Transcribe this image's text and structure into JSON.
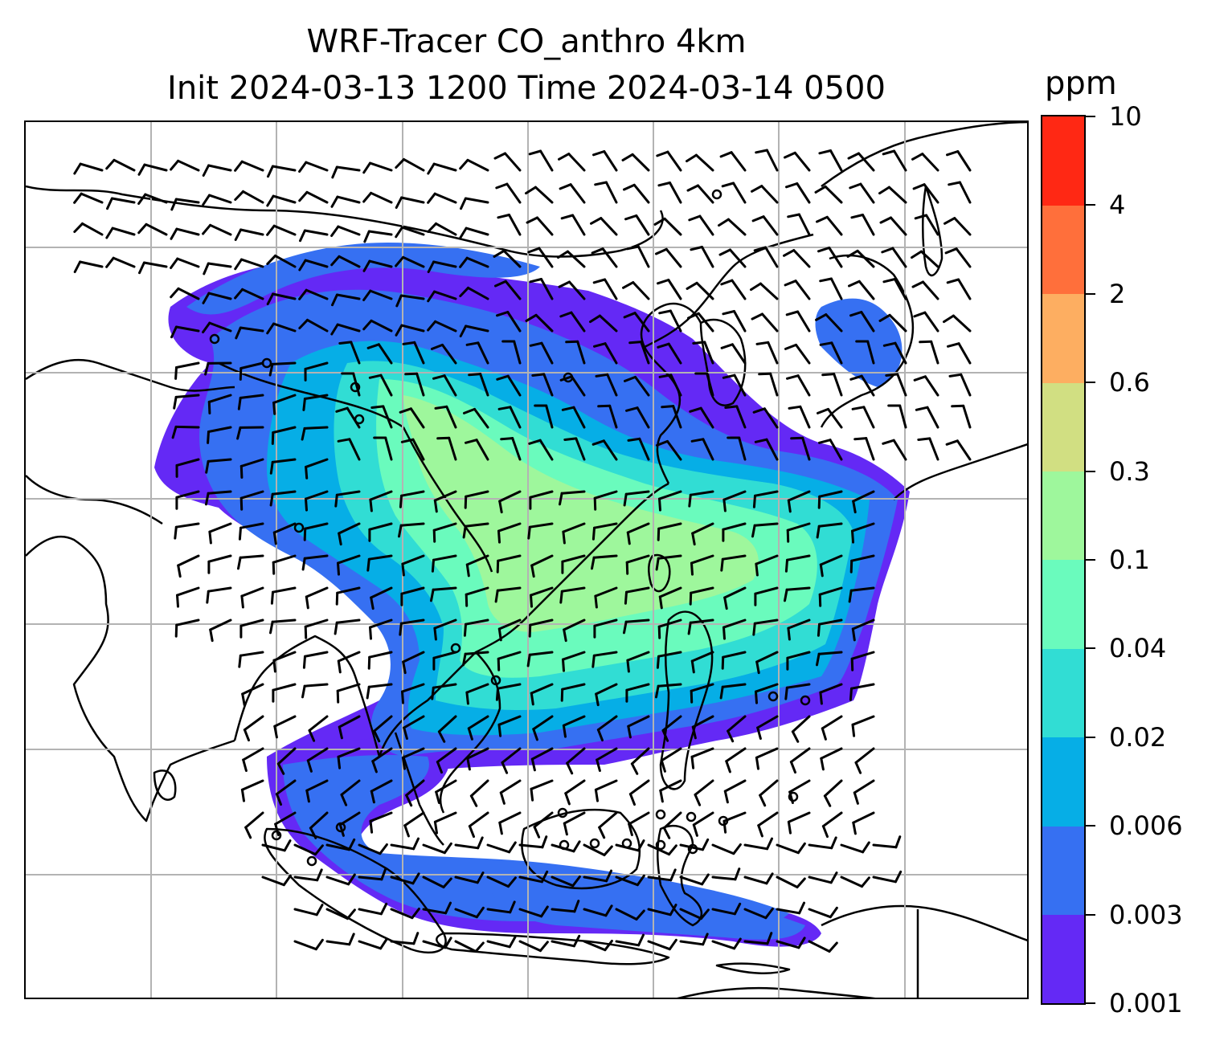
{
  "title": {
    "line1": "WRF-Tracer CO_anthro 4km",
    "line2": "Init 2024-03-13 1200 Time 2024-03-14 0500"
  },
  "colorbar": {
    "units": "ppm",
    "levels": [
      "0.001",
      "0.003",
      "0.006",
      "0.02",
      "0.04",
      "0.1",
      "0.3",
      "0.6",
      "2",
      "4",
      "10"
    ],
    "colors": [
      "#6429f5",
      "#3670f2",
      "#06aee6",
      "#31ddd4",
      "#6afbbd",
      "#9ef79c",
      "#d1df82",
      "#fdae61",
      "#ff6f3b",
      "#ff2814"
    ]
  },
  "map": {
    "coastline_color": "#000000",
    "gridline_color": "#b3b3b3",
    "plume_colors": {
      "faint": "#6429f5",
      "low": "#3670f2",
      "mid_low": "#06aee6",
      "mid": "#31ddd4",
      "mid_high": "#6afbbd",
      "high": "#9ef79c"
    },
    "wind_field": "wind barbs, knots"
  }
}
